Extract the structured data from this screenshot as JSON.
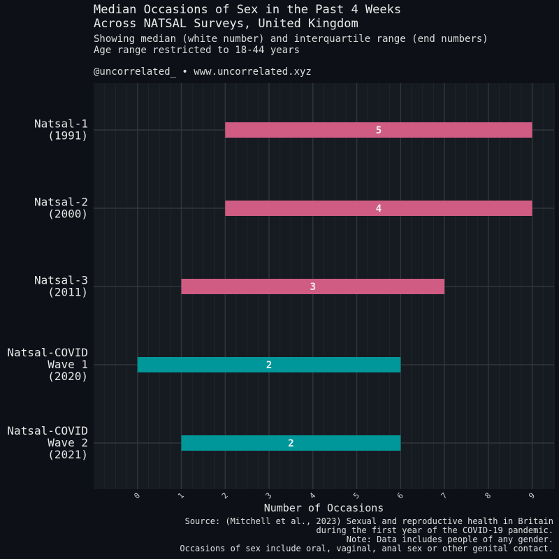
{
  "header": {
    "title_lines": [
      "Median Occasions of Sex in the Past 4 Weeks",
      "Across NATSAL Surveys, United Kingdom"
    ],
    "subtitle_lines": [
      "Showing median (white number) and interquartile range (end numbers)",
      "Age range restricted to 18-44 years"
    ],
    "credit": "@uncorrelated_ • www.uncorrelated.xyz"
  },
  "caption_lines": [
    "Source: (Mitchell et al., 2023) Sexual and reproductive health in Britain",
    "during the first year of the COVID-19 pandemic.",
    "Note: Data includes people of any gender.",
    "Occasions of sex include oral, vaginal, anal sex or other genital contact."
  ],
  "colors": {
    "background": "#0d1117",
    "panel": "#161b22",
    "pre_covid": "#d05c83",
    "covid": "#00979a",
    "median_label": "#f2f2f2"
  },
  "chart_data": {
    "type": "bar",
    "orientation": "horizontal-range",
    "title": "Median Occasions of Sex in the Past 4 Weeks Across NATSAL Surveys, United Kingdom",
    "xlabel": "Number of Occasions",
    "ylabel": "",
    "xlim": [
      -1,
      9.5
    ],
    "x_ticks": [
      "0",
      "1",
      "2",
      "3",
      "4",
      "5",
      "6",
      "7",
      "8",
      "9"
    ],
    "grid": true,
    "legend": "none",
    "categories": [
      {
        "label_lines": [
          "Natsal-1",
          "(1991)"
        ],
        "q1": 2,
        "median": 5,
        "q3": 9,
        "group": "pre_covid"
      },
      {
        "label_lines": [
          "Natsal-2",
          "(2000)"
        ],
        "q1": 2,
        "median": 4,
        "q3": 9,
        "group": "pre_covid"
      },
      {
        "label_lines": [
          "Natsal-3",
          "(2011)"
        ],
        "q1": 1,
        "median": 3,
        "q3": 7,
        "group": "pre_covid"
      },
      {
        "label_lines": [
          "Natsal-COVID",
          "Wave 1",
          "(2020)"
        ],
        "q1": 0,
        "median": 2,
        "q3": 6,
        "group": "covid"
      },
      {
        "label_lines": [
          "Natsal-COVID",
          "Wave 2",
          "(2021)"
        ],
        "q1": 1,
        "median": 2,
        "q3": 6,
        "group": "covid"
      }
    ]
  }
}
